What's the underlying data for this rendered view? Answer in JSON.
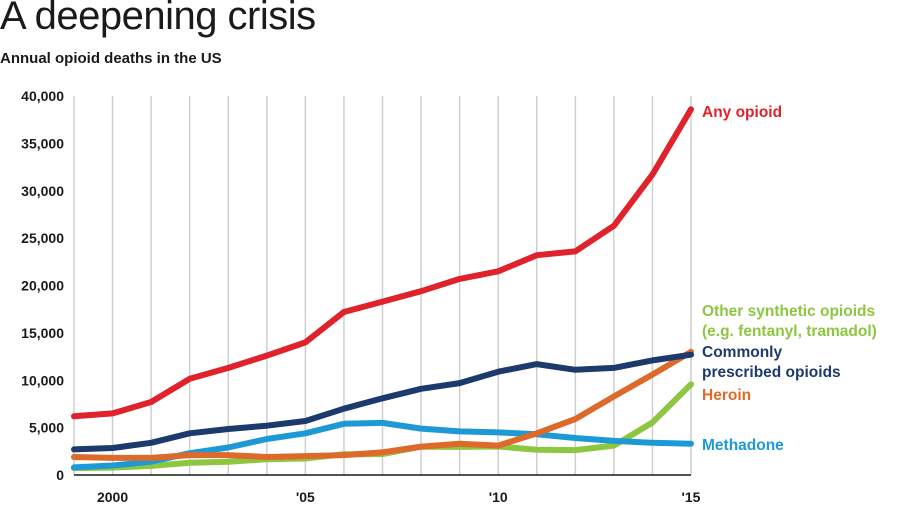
{
  "chart_data": {
    "type": "line",
    "title": "A deepening crisis",
    "subtitle": "Annual opioid deaths in the US",
    "x": [
      1999,
      2000,
      2001,
      2002,
      2003,
      2004,
      2005,
      2006,
      2007,
      2008,
      2009,
      2010,
      2011,
      2012,
      2013,
      2014,
      2015
    ],
    "xlim": [
      1999,
      2015
    ],
    "ylim": [
      0,
      40000
    ],
    "x_ticks": [
      {
        "value": 2000,
        "label": "2000"
      },
      {
        "value": 2005,
        "label": "'05"
      },
      {
        "value": 2010,
        "label": "'10"
      },
      {
        "value": 2015,
        "label": "'15"
      }
    ],
    "y_ticks": [
      {
        "value": 0,
        "label": "0"
      },
      {
        "value": 5000,
        "label": "5,000"
      },
      {
        "value": 10000,
        "label": "10,000"
      },
      {
        "value": 15000,
        "label": "15,000"
      },
      {
        "value": 20000,
        "label": "20,000"
      },
      {
        "value": 25000,
        "label": "25,000"
      },
      {
        "value": 30000,
        "label": "30,000"
      },
      {
        "value": 35000,
        "label": "35,000"
      },
      {
        "value": 40000,
        "label": "40,000"
      }
    ],
    "grid": "vertical",
    "legend": "right, inline labels",
    "series": [
      {
        "key": "other_synthetic",
        "name_lines": [
          "Other synthetic opioids",
          "(e.g. fentanyl, tramadol)"
        ],
        "color": "#8dc63f",
        "values": [
          730,
          780,
          960,
          1300,
          1400,
          1660,
          1740,
          2200,
          2210,
          2990,
          2970,
          3010,
          2670,
          2630,
          3100,
          5540,
          9580
        ]
      },
      {
        "key": "methadone",
        "name_lines": [
          "Methadone"
        ],
        "color": "#1d9ad6",
        "values": [
          800,
          1000,
          1400,
          2300,
          2900,
          3800,
          4400,
          5400,
          5500,
          4900,
          4600,
          4500,
          4300,
          3900,
          3600,
          3400,
          3300
        ]
      },
      {
        "key": "heroin",
        "name_lines": [
          "Heroin"
        ],
        "color": "#dd6a2a",
        "values": [
          1900,
          1800,
          1800,
          2100,
          2100,
          1900,
          2000,
          2100,
          2400,
          3000,
          3300,
          3100,
          4400,
          5900,
          8300,
          10600,
          13000
        ]
      },
      {
        "key": "prescribed",
        "name_lines": [
          "Commonly",
          "prescribed opioids"
        ],
        "color": "#1c3a6b",
        "values": [
          2700,
          2850,
          3400,
          4400,
          4850,
          5200,
          5700,
          7000,
          8100,
          9100,
          9700,
          10900,
          11700,
          11100,
          11300,
          12100,
          12700
        ]
      },
      {
        "key": "any",
        "name_lines": [
          "Any opioid"
        ],
        "color": "#e0222c",
        "values": [
          6200,
          6500,
          7700,
          10150,
          11300,
          12600,
          14000,
          17200,
          18300,
          19400,
          20700,
          21500,
          23200,
          23600,
          26300,
          31700,
          38600
        ]
      }
    ]
  }
}
